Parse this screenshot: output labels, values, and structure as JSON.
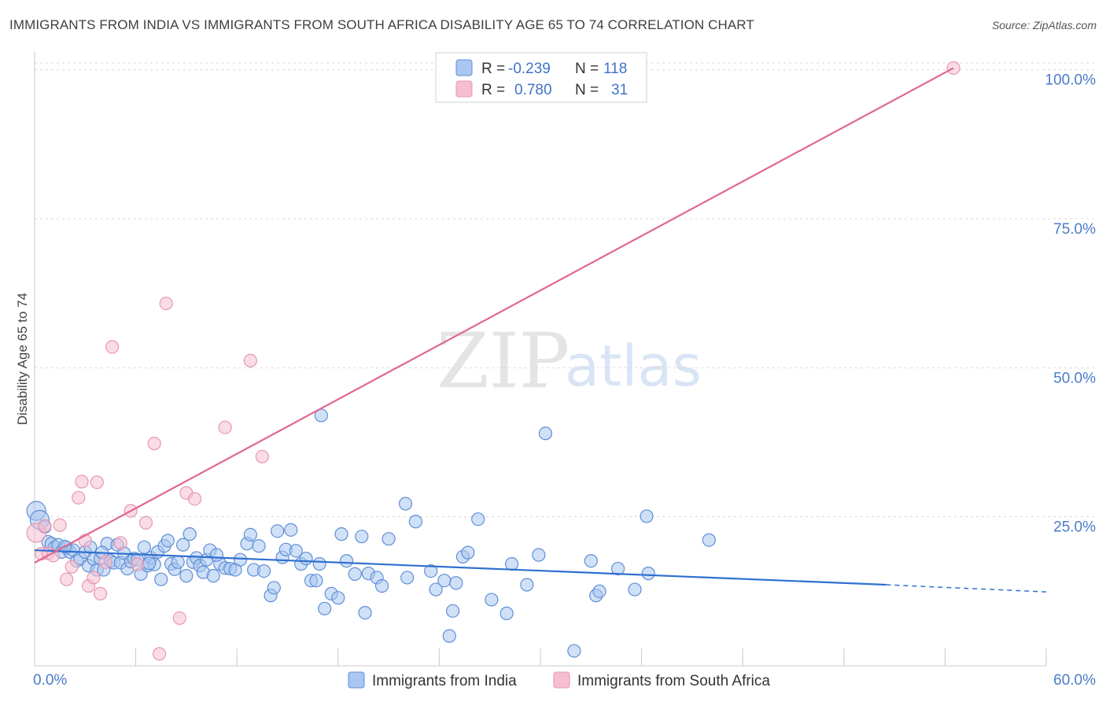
{
  "title": "IMMIGRANTS FROM INDIA VS IMMIGRANTS FROM SOUTH AFRICA DISABILITY AGE 65 TO 74 CORRELATION CHART",
  "source": "Source: ZipAtlas.com",
  "watermark": {
    "zip": "ZIP",
    "atlas": "atlas"
  },
  "colors": {
    "india_fill": "#a9c7f0",
    "india_stroke": "#5f8fd6",
    "india_line": "#2f6fcf",
    "sa_fill": "#f6bfd0",
    "sa_stroke": "#e897b0",
    "sa_line": "#e06790",
    "tick_text": "#4a7bcb",
    "grid": "#d9d9d9"
  },
  "legend": {
    "india": {
      "r_label": "R =",
      "r_value": "-0.239",
      "n_label": "N =",
      "n_value": "118"
    },
    "sa": {
      "r_label": "R =",
      "r_value": "0.780",
      "n_label": "N =",
      "n_value": "31"
    }
  },
  "chart_data": {
    "type": "scatter",
    "title": "IMMIGRANTS FROM INDIA VS IMMIGRANTS FROM SOUTH AFRICA DISABILITY AGE 65 TO 74 CORRELATION CHART",
    "xlabel": "",
    "ylabel": "Disability Age 65 to 74",
    "xlim": [
      0,
      60
    ],
    "ylim": [
      0,
      103
    ],
    "x_tick_labels": [
      "0.0%",
      "60.0%"
    ],
    "y_ticks": [
      25,
      50,
      75,
      100
    ],
    "y_tick_labels": [
      "25.0%",
      "50.0%",
      "75.0%",
      "100.0%"
    ],
    "series": [
      {
        "name": "Immigrants from India",
        "r": -0.239,
        "n": 118,
        "trend": {
          "x0": 0,
          "y0": 19.4,
          "x1": 50.5,
          "y1": 13.6,
          "dash_to_x": 60,
          "dash_to_y": 12.4
        },
        "points": [
          [
            0.1,
            26.0
          ],
          [
            0.3,
            24.5
          ],
          [
            0.6,
            23.3
          ],
          [
            0.8,
            20.8
          ],
          [
            1.0,
            20.5
          ],
          [
            1.2,
            19.9
          ],
          [
            1.4,
            20.3
          ],
          [
            1.6,
            19.1
          ],
          [
            1.9,
            19.8
          ],
          [
            2.1,
            19.1
          ],
          [
            2.3,
            19.4
          ],
          [
            2.5,
            17.6
          ],
          [
            2.7,
            18.0
          ],
          [
            3.0,
            19.1
          ],
          [
            3.2,
            16.8
          ],
          [
            3.3,
            19.9
          ],
          [
            3.5,
            17.9
          ],
          [
            3.7,
            16.1
          ],
          [
            3.9,
            18.0
          ],
          [
            4.1,
            16.1
          ],
          [
            4.3,
            20.5
          ],
          [
            4.5,
            17.6
          ],
          [
            4.7,
            17.3
          ],
          [
            4.9,
            20.3
          ],
          [
            5.1,
            17.3
          ],
          [
            5.3,
            18.9
          ],
          [
            5.5,
            16.3
          ],
          [
            5.7,
            17.5
          ],
          [
            5.9,
            18.0
          ],
          [
            6.1,
            17.8
          ],
          [
            6.3,
            15.4
          ],
          [
            6.5,
            19.9
          ],
          [
            6.7,
            16.8
          ],
          [
            6.9,
            18.1
          ],
          [
            7.1,
            17.0
          ],
          [
            7.3,
            19.1
          ],
          [
            7.5,
            14.5
          ],
          [
            7.7,
            20.1
          ],
          [
            7.9,
            21.0
          ],
          [
            8.1,
            17.1
          ],
          [
            8.3,
            16.2
          ],
          [
            8.5,
            17.4
          ],
          [
            8.8,
            20.3
          ],
          [
            9.0,
            15.1
          ],
          [
            9.2,
            22.1
          ],
          [
            9.4,
            17.4
          ],
          [
            9.6,
            18.1
          ],
          [
            9.8,
            16.8
          ],
          [
            10.0,
            15.7
          ],
          [
            10.2,
            17.8
          ],
          [
            10.4,
            19.4
          ],
          [
            10.6,
            15.1
          ],
          [
            11.0,
            17.1
          ],
          [
            11.3,
            16.4
          ],
          [
            11.6,
            16.3
          ],
          [
            11.9,
            16.1
          ],
          [
            12.2,
            17.8
          ],
          [
            12.6,
            20.5
          ],
          [
            12.8,
            22.0
          ],
          [
            13.0,
            16.1
          ],
          [
            13.3,
            20.1
          ],
          [
            13.6,
            15.9
          ],
          [
            14.0,
            11.8
          ],
          [
            14.2,
            13.1
          ],
          [
            14.4,
            22.6
          ],
          [
            14.7,
            18.2
          ],
          [
            14.9,
            19.5
          ],
          [
            15.2,
            22.8
          ],
          [
            15.5,
            19.3
          ],
          [
            15.8,
            17.1
          ],
          [
            16.1,
            18.0
          ],
          [
            16.4,
            14.3
          ],
          [
            16.7,
            14.3
          ],
          [
            16.9,
            17.1
          ],
          [
            17.2,
            9.6
          ],
          [
            17.6,
            12.1
          ],
          [
            18.0,
            11.4
          ],
          [
            18.2,
            22.1
          ],
          [
            18.5,
            17.6
          ],
          [
            19.0,
            15.4
          ],
          [
            19.4,
            21.7
          ],
          [
            19.6,
            8.9
          ],
          [
            19.8,
            15.5
          ],
          [
            20.3,
            14.8
          ],
          [
            20.6,
            13.4
          ],
          [
            21.0,
            21.3
          ],
          [
            22.0,
            27.2
          ],
          [
            22.1,
            14.8
          ],
          [
            22.6,
            24.2
          ],
          [
            23.5,
            15.9
          ],
          [
            23.8,
            12.8
          ],
          [
            24.3,
            14.3
          ],
          [
            24.6,
            5.0
          ],
          [
            24.8,
            9.2
          ],
          [
            25.0,
            13.9
          ],
          [
            25.4,
            18.3
          ],
          [
            25.7,
            19.0
          ],
          [
            26.3,
            24.6
          ],
          [
            27.1,
            11.1
          ],
          [
            28.0,
            8.8
          ],
          [
            28.3,
            17.1
          ],
          [
            29.2,
            13.6
          ],
          [
            29.9,
            18.6
          ],
          [
            30.3,
            39.0
          ],
          [
            32.0,
            2.5
          ],
          [
            33.0,
            17.6
          ],
          [
            33.3,
            11.8
          ],
          [
            33.5,
            12.5
          ],
          [
            34.6,
            16.3
          ],
          [
            35.6,
            12.8
          ],
          [
            36.3,
            25.1
          ],
          [
            36.4,
            15.5
          ],
          [
            40.0,
            21.1
          ],
          [
            1.8,
            20.0
          ],
          [
            4.0,
            19.0
          ],
          [
            10.8,
            18.6
          ],
          [
            17.0,
            42.0
          ],
          [
            6.8,
            17.2
          ]
        ]
      },
      {
        "name": "Immigrants from South Africa",
        "r": 0.78,
        "n": 31,
        "trend": {
          "x0": 0,
          "y0": 17.3,
          "x1": 54.5,
          "y1": 100.3
        },
        "points": [
          [
            0.1,
            22.3
          ],
          [
            0.4,
            18.8
          ],
          [
            0.6,
            23.5
          ],
          [
            0.8,
            18.9
          ],
          [
            1.1,
            18.5
          ],
          [
            1.5,
            23.6
          ],
          [
            1.9,
            14.5
          ],
          [
            2.2,
            16.6
          ],
          [
            2.6,
            28.2
          ],
          [
            2.8,
            30.9
          ],
          [
            3.2,
            13.4
          ],
          [
            3.5,
            14.8
          ],
          [
            3.7,
            30.8
          ],
          [
            3.9,
            12.1
          ],
          [
            4.2,
            17.4
          ],
          [
            4.6,
            53.5
          ],
          [
            5.1,
            20.6
          ],
          [
            5.7,
            26.0
          ],
          [
            6.1,
            17.0
          ],
          [
            6.6,
            24.0
          ],
          [
            7.1,
            37.3
          ],
          [
            7.4,
            2.0
          ],
          [
            7.8,
            60.8
          ],
          [
            8.6,
            8.0
          ],
          [
            9.0,
            29.0
          ],
          [
            9.5,
            28.0
          ],
          [
            11.3,
            40.0
          ],
          [
            12.8,
            51.2
          ],
          [
            13.5,
            35.1
          ],
          [
            54.5,
            100.3
          ],
          [
            3.0,
            21.0
          ]
        ]
      }
    ]
  },
  "bottom_legend": {
    "india": "Immigrants from India",
    "sa": "Immigrants from South Africa"
  }
}
